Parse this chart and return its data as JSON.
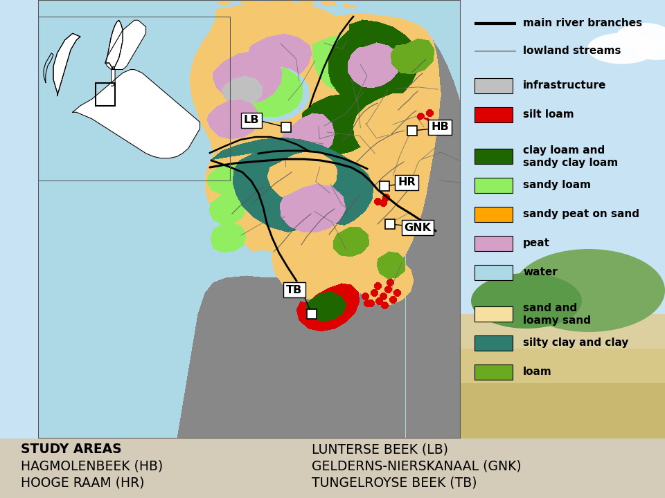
{
  "sky_color": "#c8e4f4",
  "bottom_bg": "#d4cbb8",
  "legend_bg": "#ffffff",
  "legend_items_lines": [
    {
      "color": "#000000",
      "lw": 3,
      "label": "main river branches"
    },
    {
      "color": "#999999",
      "lw": 1.5,
      "label": "lowland streams"
    }
  ],
  "legend_items_patches": [
    {
      "color": "#c0c0c0",
      "label": "infrastructure"
    },
    {
      "color": "#dd0000",
      "label": "silt loam"
    },
    {
      "color": "#1e6600",
      "label": "clay loam and\nsandy clay loam"
    },
    {
      "color": "#90ee60",
      "label": "sandy loam"
    },
    {
      "color": "#ffa500",
      "label": "sandy peat on sand"
    },
    {
      "color": "#d4a0c8",
      "label": "peat"
    },
    {
      "color": "#add8e6",
      "label": "water"
    },
    {
      "color": "#f5e0a0",
      "label": "sand and\nloamy sand"
    },
    {
      "color": "#2e7d6e",
      "label": "silty clay and clay"
    },
    {
      "color": "#6aaa20",
      "label": "loam"
    }
  ],
  "bottom_col1": [
    "STUDY AREAS",
    "HAGMOLENBEEK (HB)",
    "HOOGE RAAM (HR)"
  ],
  "bottom_col2": [
    "LUNTERSE BEEK (LB)",
    "GELDERNS-NIERSKANAAL (GNK)",
    "TUNGELROYSE BEEK (TB)"
  ],
  "sea_color": "#add8e6",
  "neighbor_color": "#888888",
  "orange_color": "#f5c870",
  "dark_green": "#1e6600",
  "light_green": "#90ee60",
  "med_green": "#6aaa20",
  "peat_color": "#d4a0c8",
  "teal_color": "#2e7d6e",
  "water_color": "#add8e6",
  "sand_color": "#f5e0a0",
  "gray_color": "#c0c0c0",
  "red_color": "#dd0000"
}
